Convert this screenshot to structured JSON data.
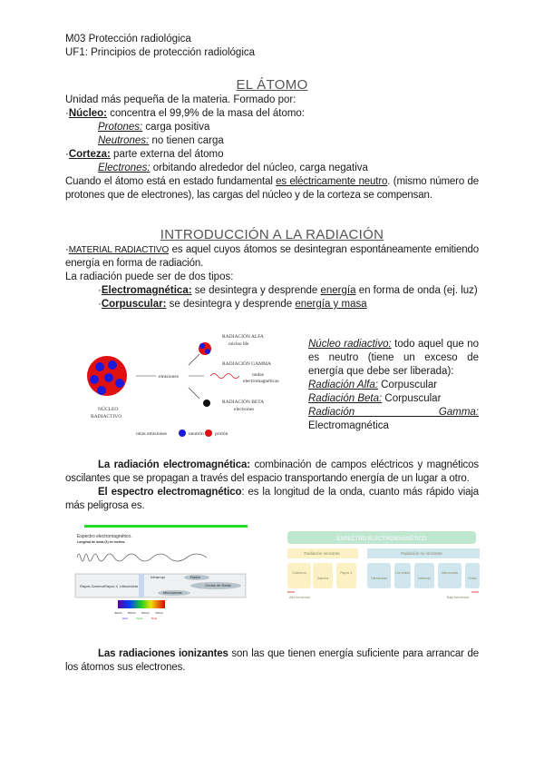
{
  "header": {
    "course": "M03 Protección radiológica",
    "unit": "UF1: Principios de protección radiológica"
  },
  "atom": {
    "title": "EL ÁTOMO",
    "intro": "Unidad más pequeña de la materia. Formado por:",
    "nucleus_label": "Núcleo:",
    "nucleus_text": " concentra el 99,9% de la masa del átomo:",
    "protons_label": "Protones:",
    "protons_text": " carga positiva",
    "neutrons_label": "Neutrones:",
    "neutrons_text": " no tienen carga",
    "cortex_label": "Corteza:",
    "cortex_text": " parte externa del átomo",
    "electrons_label": "Electrones:",
    "electrons_text": " orbitando alrededor del núcleo, carga negativa",
    "neutral_a": "Cuando el átomo está en estado fundamental ",
    "neutral_u": "es eléctricamente neutro",
    "neutral_b": ". (mismo número de protones que de electrones), las cargas del núcleo y de la corteza se compensan."
  },
  "radiation": {
    "title": "INTRODUCCIÓN A LA RADIACIÓN",
    "material_label": "MATERIAL RADIACTIVO",
    "material_text": " es aquel cuyos átomos se desintegran espontáneamente emitiendo energía en forma de radiación.",
    "types_intro": "La radiación puede ser de dos tipos:",
    "em_label": "Electromagnética:",
    "em_a": " se desintegra y desprende ",
    "em_u": "energía",
    "em_b": " en forma de onda (ej. luz)",
    "corp_label": "Corpuscular:",
    "corp_a": " se desintegra y desprende ",
    "corp_u": "energía y masa",
    "side": {
      "nucleo_label": "Núcleo radiactivo:",
      "nucleo_text": " todo aquel que no es neutro (tiene un exceso de energía que debe ser liberada):",
      "alfa_label": "Radiación Alfa:",
      "alfa_text": " Corpuscular",
      "beta_label": "Radiación Beta:",
      "beta_text": " Corpuscular",
      "gamma_label": "Radiación Gamma:",
      "gamma_text": " Electromagnética"
    },
    "diagram": {
      "alfa": "RADIACIÓN ALFA",
      "alfa_sub": "núcleo He",
      "gamma": "RADIACIÓN GAMMA",
      "gamma_sub1": "ondas",
      "gamma_sub2": "electromagnéticas",
      "beta": "RADIACIÓN BETA",
      "beta_sub": "electrones",
      "nucleo1": "NÚCLEO",
      "nucleo2": "RADIACTIVO",
      "emisiones": "emisiones",
      "otras": "otras emisiones",
      "neutron": "neutrón",
      "proton": "protón",
      "neutron_color": "#1a1adc",
      "proton_color": "#e01010"
    },
    "em_def_label": "La radiación electromagnética:",
    "em_def_text": " combinación de campos eléctricos y magnéticos oscilantes que se propagan a través del espacio transportando energía de un lugar a otro.",
    "spec_label": "El espectro electromagnético",
    "spec_text": ": es la longitud de la onda, cuanto más rápido viaja más peligrosa es.",
    "ion_label": "Las radiaciones ionizantes",
    "ion_text": " son las que tienen energía suficiente para arrancar de los átomos sus electrones."
  },
  "spectrum_left": {
    "title": "Espectro electromagnético.",
    "subtitle": "Longitud de onda (λ) en metros.",
    "bands": [
      "Rayos Gamma",
      "Rayos X",
      "Ultravioleta",
      "Visible",
      "Infrarrojo",
      "Radar",
      "Ondas de Radio",
      "Microondas"
    ],
    "nm": [
      "400nm",
      "500nm",
      "600nm",
      "700nm"
    ],
    "colors": [
      "Azul",
      "Verde",
      "Rojo"
    ]
  },
  "spectrum_right": {
    "title": "ESPECTRO ELECTROMAGNÉTICO",
    "ionizing": "Radiación ionizante",
    "non_ionizing": "Radiación no ionizante",
    "items": [
      "Cósmicos",
      "Gamma",
      "Rayos X",
      "Ultravioleta",
      "Luz visible",
      "Infrarrojo",
      "Microondas",
      "Radio"
    ],
    "high": "Alta frecuencia",
    "low": "Baja frecuencia"
  }
}
